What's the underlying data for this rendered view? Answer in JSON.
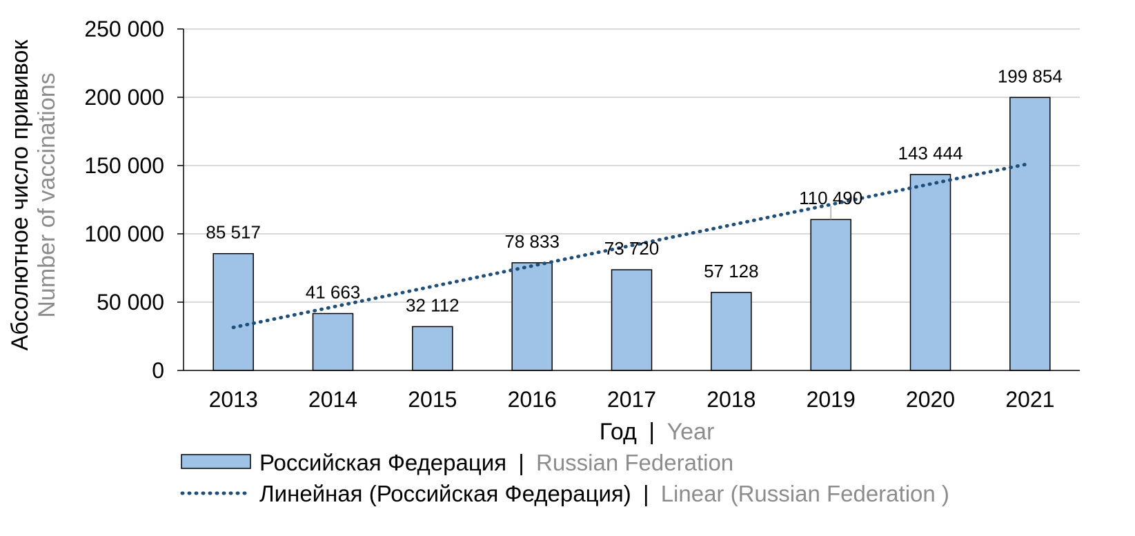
{
  "chart_data": {
    "type": "bar",
    "categories": [
      "2013",
      "2014",
      "2015",
      "2016",
      "2017",
      "2018",
      "2019",
      "2020",
      "2021"
    ],
    "series": [
      {
        "name_ru": "Российская Федерация",
        "name_en": "Russian Federation",
        "values": [
          85517,
          41663,
          32112,
          78833,
          73720,
          57128,
          110490,
          143444,
          199854
        ],
        "labels": [
          "85 517",
          "41 663",
          "32 112",
          "78 833",
          "73 720",
          "57 128",
          "110 490",
          "143 444",
          "199 854"
        ],
        "color": "#9fc3e7"
      }
    ],
    "trendline": {
      "type": "linear",
      "name_ru": "Линейная (Российская Федерация)",
      "name_en": "Linear (Russian Federation )",
      "color": "#1f4e79",
      "start": 31500,
      "end": 151500
    },
    "xlabel_ru": "Год",
    "xlabel_en": "Year",
    "ylabel_ru": "Абсолютное число прививок",
    "ylabel_en": "Number of vaccinations",
    "ylim": [
      0,
      250000
    ],
    "yticks": [
      0,
      50000,
      100000,
      150000,
      200000,
      250000
    ],
    "ytick_labels": [
      "0",
      "50 000",
      "100 000",
      "150 000",
      "200 000",
      "250 000"
    ],
    "grid": true,
    "legend_position": "bottom",
    "separator": "|",
    "secondary_text_color": "#8c8c8c"
  }
}
